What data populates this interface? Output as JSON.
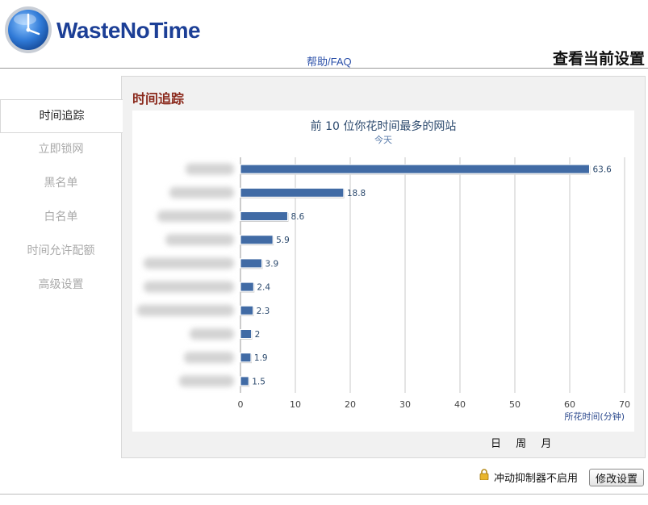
{
  "header": {
    "app_name": "WasteNoTime",
    "help_link": "帮助/FAQ",
    "view_settings": "查看当前设置"
  },
  "sidebar": {
    "items": [
      {
        "label": "时间追踪",
        "active": true
      },
      {
        "label": "立即锁网",
        "active": false
      },
      {
        "label": "黑名单",
        "active": false
      },
      {
        "label": "白名单",
        "active": false
      },
      {
        "label": "时间允许配额",
        "active": false
      },
      {
        "label": "高级设置",
        "active": false
      }
    ]
  },
  "main": {
    "section_title": "时间追踪",
    "range_tabs": [
      "日",
      "周",
      "月"
    ]
  },
  "chart_data": {
    "type": "bar",
    "orientation": "horizontal",
    "title": "前 10 位你花时间最多的网站",
    "subtitle": "今天",
    "xlabel": "所花时间(分钟)",
    "ylabel": "",
    "categories_visible": false,
    "values": [
      63.6,
      18.8,
      8.6,
      5.9,
      3.9,
      2.4,
      2.3,
      2,
      1.9,
      1.5
    ],
    "value_labels": [
      "63.6",
      "18.8",
      "8.6",
      "5.9",
      "3.9",
      "2.4",
      "2.3",
      "2",
      "1.9",
      "1.5"
    ],
    "xlim": [
      0,
      70
    ],
    "xticks": [
      "0",
      "10",
      "20",
      "30",
      "40",
      "50",
      "60",
      "70"
    ],
    "grid": true,
    "bar_color": "#416ba5"
  },
  "footer": {
    "procrastination_status": "冲动抑制器不启用",
    "edit_button": "修改设置",
    "lock_icon": "lock-icon"
  }
}
